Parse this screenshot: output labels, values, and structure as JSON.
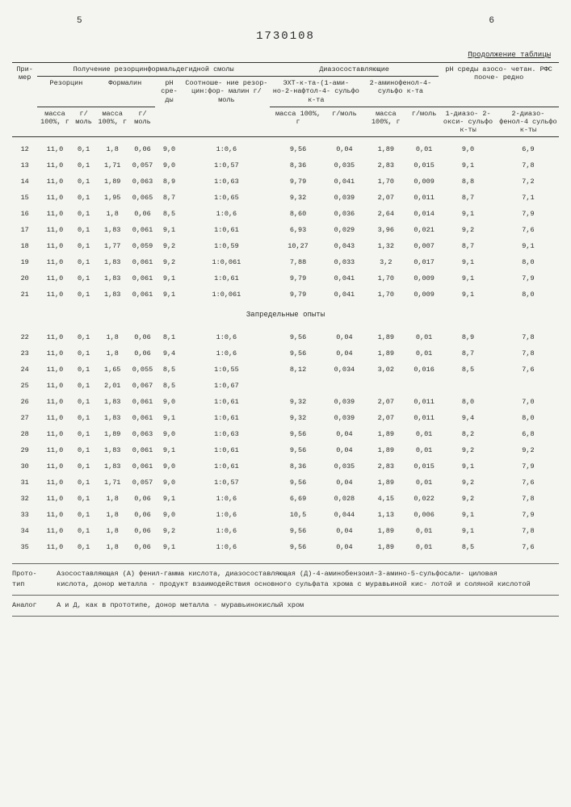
{
  "page_left": "5",
  "page_right": "6",
  "doc_number": "1730108",
  "continuation": "Продолжение таблицы",
  "headers": {
    "col1": "При-\nмер",
    "group1": "Получение резорцинформальдегидной смолы",
    "group1a": "Резорцин",
    "group1b": "Формалин",
    "ph1": "pH сре-\nды",
    "ratio": "Соотноше-\nние резор-\nцин:фор-\nмалин\nг/моль",
    "group2": "Диазосоставляющие",
    "group2a": "ЭХТ-к-та-(1-ами-\nно-2-нафтол-4-\nсульфо к-та",
    "group2b": "2-аминофенол-4-\nсульфо к-та",
    "ph2": "pH среды азосо-\nчетан. РФС пооче-\nредно",
    "mass": "масса\n100%, г",
    "gmol": "г/моль",
    "ph2a": "1-диазо-\n2-окси-\nсульфо\nк-ты",
    "ph2b": "2-диазо-\nфенол-4\nсульфо\nк-ты"
  },
  "rows": [
    {
      "n": "12",
      "r1": "11,0",
      "r2": "0,1",
      "f1": "1,8",
      "f2": "0,06",
      "ph": "9,0",
      "rat": "1:0,6",
      "d1": "9,56",
      "d2": "0,04",
      "e1": "1,89",
      "e2": "0,01",
      "p1": "9,0",
      "p2": "6,9"
    },
    {
      "n": "13",
      "r1": "11,0",
      "r2": "0,1",
      "f1": "1,71",
      "f2": "0,057",
      "ph": "9,0",
      "rat": "1:0,57",
      "d1": "8,36",
      "d2": "0,035",
      "e1": "2,83",
      "e2": "0,015",
      "p1": "9,1",
      "p2": "7,8"
    },
    {
      "n": "14",
      "r1": "11,0",
      "r2": "0,1",
      "f1": "1,89",
      "f2": "0,063",
      "ph": "8,9",
      "rat": "1:0,63",
      "d1": "9,79",
      "d2": "0,041",
      "e1": "1,70",
      "e2": "0,009",
      "p1": "8,8",
      "p2": "7,2"
    },
    {
      "n": "15",
      "r1": "11,0",
      "r2": "0,1",
      "f1": "1,95",
      "f2": "0,065",
      "ph": "8,7",
      "rat": "1:0,65",
      "d1": "9,32",
      "d2": "0,039",
      "e1": "2,07",
      "e2": "0,011",
      "p1": "8,7",
      "p2": "7,1"
    },
    {
      "n": "16",
      "r1": "11,0",
      "r2": "0,1",
      "f1": "1,8",
      "f2": "0,06",
      "ph": "8,5",
      "rat": "1:0,6",
      "d1": "8,60",
      "d2": "0,036",
      "e1": "2,64",
      "e2": "0,014",
      "p1": "9,1",
      "p2": "7,9"
    },
    {
      "n": "17",
      "r1": "11,0",
      "r2": "0,1",
      "f1": "1,83",
      "f2": "0,061",
      "ph": "9,1",
      "rat": "1:0,61",
      "d1": "6,93",
      "d2": "0,029",
      "e1": "3,96",
      "e2": "0,021",
      "p1": "9,2",
      "p2": "7,6"
    },
    {
      "n": "18",
      "r1": "11,0",
      "r2": "0,1",
      "f1": "1,77",
      "f2": "0,059",
      "ph": "9,2",
      "rat": "1:0,59",
      "d1": "10,27",
      "d2": "0,043",
      "e1": "1,32",
      "e2": "0,007",
      "p1": "8,7",
      "p2": "9,1"
    },
    {
      "n": "19",
      "r1": "11,0",
      "r2": "0,1",
      "f1": "1,83",
      "f2": "0,061",
      "ph": "9,2",
      "rat": "1:0,061",
      "d1": "7,88",
      "d2": "0,033",
      "e1": "3,2",
      "e2": "0,017",
      "p1": "9,1",
      "p2": "8,0"
    },
    {
      "n": "20",
      "r1": "11,0",
      "r2": "0,1",
      "f1": "1,83",
      "f2": "0,061",
      "ph": "9,1",
      "rat": "1:0,61",
      "d1": "9,79",
      "d2": "0,041",
      "e1": "1,70",
      "e2": "0,009",
      "p1": "9,1",
      "p2": "7,9"
    },
    {
      "n": "21",
      "r1": "11,0",
      "r2": "0,1",
      "f1": "1,83",
      "f2": "0,061",
      "ph": "9,1",
      "rat": "1:0,061",
      "d1": "9,79",
      "d2": "0,041",
      "e1": "1,70",
      "e2": "0,009",
      "p1": "9,1",
      "p2": "8,0"
    }
  ],
  "section_label": "Запредельные опыты",
  "rows2": [
    {
      "n": "22",
      "r1": "11,0",
      "r2": "0,1",
      "f1": "1,8",
      "f2": "0,06",
      "ph": "8,1",
      "rat": "1:0,6",
      "d1": "9,56",
      "d2": "0,04",
      "e1": "1,89",
      "e2": "0,01",
      "p1": "8,9",
      "p2": "7,8"
    },
    {
      "n": "23",
      "r1": "11,0",
      "r2": "0,1",
      "f1": "1,8",
      "f2": "0,06",
      "ph": "9,4",
      "rat": "1:0,6",
      "d1": "9,56",
      "d2": "0,04",
      "e1": "1,89",
      "e2": "0,01",
      "p1": "8,7",
      "p2": "7,8"
    },
    {
      "n": "24",
      "r1": "11,0",
      "r2": "0,1",
      "f1": "1,65",
      "f2": "0,055",
      "ph": "8,5",
      "rat": "1:0,55",
      "d1": "8,12",
      "d2": "0,034",
      "e1": "3,02",
      "e2": "0,016",
      "p1": "8,5",
      "p2": "7,6"
    },
    {
      "n": "25",
      "r1": "11,0",
      "r2": "0,1",
      "f1": "2,01",
      "f2": "0,067",
      "ph": "8,5",
      "rat": "1:0,67",
      "d1": "",
      "d2": "",
      "e1": "",
      "e2": "",
      "p1": "",
      "p2": ""
    },
    {
      "n": "26",
      "r1": "11,0",
      "r2": "0,1",
      "f1": "1,83",
      "f2": "0,061",
      "ph": "9,0",
      "rat": "1:0,61",
      "d1": "9,32",
      "d2": "0,039",
      "e1": "2,07",
      "e2": "0,011",
      "p1": "8,0",
      "p2": "7,0"
    },
    {
      "n": "27",
      "r1": "11,0",
      "r2": "0,1",
      "f1": "1,83",
      "f2": "0,061",
      "ph": "9,1",
      "rat": "1:0,61",
      "d1": "9,32",
      "d2": "0,039",
      "e1": "2,07",
      "e2": "0,011",
      "p1": "9,4",
      "p2": "8,0"
    },
    {
      "n": "28",
      "r1": "11,0",
      "r2": "0,1",
      "f1": "1,89",
      "f2": "0,063",
      "ph": "9,0",
      "rat": "1:0,63",
      "d1": "9,56",
      "d2": "0,04",
      "e1": "1,89",
      "e2": "0,01",
      "p1": "8,2",
      "p2": "6,8"
    },
    {
      "n": "29",
      "r1": "11,0",
      "r2": "0,1",
      "f1": "1,83",
      "f2": "0,061",
      "ph": "9,1",
      "rat": "1:0,61",
      "d1": "9,56",
      "d2": "0,04",
      "e1": "1,89",
      "e2": "0,01",
      "p1": "9,2",
      "p2": "9,2"
    },
    {
      "n": "30",
      "r1": "11,0",
      "r2": "0,1",
      "f1": "1,83",
      "f2": "0,061",
      "ph": "9,0",
      "rat": "1:0,61",
      "d1": "8,36",
      "d2": "0,035",
      "e1": "2,83",
      "e2": "0,015",
      "p1": "9,1",
      "p2": "7,9"
    },
    {
      "n": "31",
      "r1": "11,0",
      "r2": "0,1",
      "f1": "1,71",
      "f2": "0,057",
      "ph": "9,0",
      "rat": "1:0,57",
      "d1": "9,56",
      "d2": "0,04",
      "e1": "1,89",
      "e2": "0,01",
      "p1": "9,2",
      "p2": "7,6"
    },
    {
      "n": "32",
      "r1": "11,0",
      "r2": "0,1",
      "f1": "1,8",
      "f2": "0,06",
      "ph": "9,1",
      "rat": "1:0,6",
      "d1": "6,69",
      "d2": "0,028",
      "e1": "4,15",
      "e2": "0,022",
      "p1": "9,2",
      "p2": "7,8"
    },
    {
      "n": "33",
      "r1": "11,0",
      "r2": "0,1",
      "f1": "1,8",
      "f2": "0,06",
      "ph": "9,0",
      "rat": "1:0,6",
      "d1": "10,5",
      "d2": "0,044",
      "e1": "1,13",
      "e2": "0,006",
      "p1": "9,1",
      "p2": "7,9"
    },
    {
      "n": "34",
      "r1": "11,0",
      "r2": "0,1",
      "f1": "1,8",
      "f2": "0,06",
      "ph": "9,2",
      "rat": "1:0,6",
      "d1": "9,56",
      "d2": "0,04",
      "e1": "1,89",
      "e2": "0,01",
      "p1": "9,1",
      "p2": "7,8"
    },
    {
      "n": "35",
      "r1": "11,0",
      "r2": "0,1",
      "f1": "1,8",
      "f2": "0,06",
      "ph": "9,1",
      "rat": "1:0,6",
      "d1": "9,56",
      "d2": "0,04",
      "e1": "1,89",
      "e2": "0,01",
      "p1": "8,5",
      "p2": "7,6"
    }
  ],
  "footnote1_label": "Прото-\nтип",
  "footnote1": "Азосоставляющая (А) фенил-гамма кислота, диазосоставляющая (Д)-4-аминобензоил-3-амино-5-сульфосали-\nциловая кислота, донор металла - продукт взаимодействия основного сульфата хрома с муравьиной кис-\nлотой и соляной кислотой",
  "footnote2_label": "Аналог",
  "footnote2": "А и Д, как в прототипе, донор металла - муравьинокислый хром"
}
